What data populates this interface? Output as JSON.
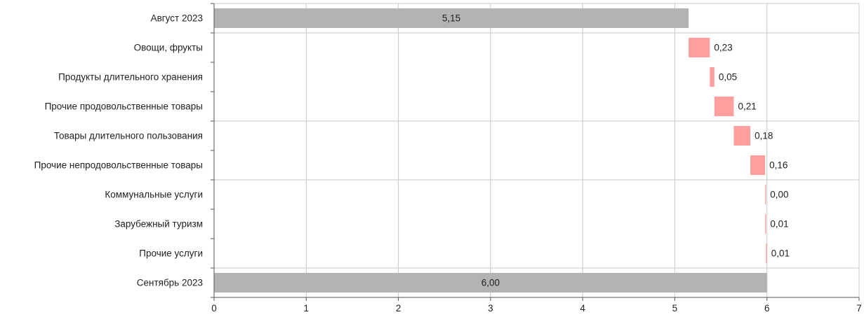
{
  "chart_data": {
    "type": "bar",
    "subtype": "waterfall",
    "orientation": "horizontal",
    "title": "",
    "xlabel": "",
    "ylabel": "",
    "xlim": [
      0,
      7
    ],
    "x_ticks": [
      "0",
      "1",
      "2",
      "3",
      "4",
      "5",
      "6",
      "7"
    ],
    "grid": true,
    "categories": [
      "Август 2023",
      "Овощи, фрукты",
      "Продукты длительного хранения",
      "Прочие продовольственные товары",
      "Товары длительного пользования",
      "Прочие непродовольственные товары",
      "Коммунальные услуги",
      "Зарубежный туризм",
      "Прочие услуги",
      "Сентябрь 2023"
    ],
    "values": [
      5.15,
      0.23,
      0.05,
      0.21,
      0.18,
      0.16,
      0.0,
      0.01,
      0.01,
      6.0
    ],
    "labels": [
      "5,15",
      "0,23",
      "0,05",
      "0,21",
      "0,18",
      "0,16",
      "0,00",
      "0,01",
      "0,01",
      "6,00"
    ],
    "kinds": [
      "total",
      "delta",
      "delta",
      "delta",
      "delta",
      "delta",
      "delta",
      "delta",
      "delta",
      "total"
    ],
    "colors": {
      "total": "#b3b3b3",
      "delta": "#ff9f9f",
      "grid": "#c8c8c8",
      "axis": "#555555"
    }
  }
}
